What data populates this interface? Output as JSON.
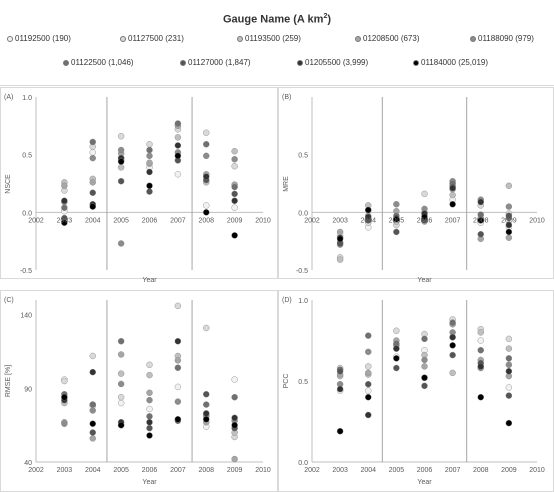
{
  "legend": {
    "title": "Gauge Name (A km",
    "title_sup": "2",
    "title_end": ")",
    "rows": [
      [
        "01192500 (190)",
        "01127500 (231)",
        "01193500 (259)",
        "01208500 (673)",
        "01188090 (979)"
      ],
      [
        "01122500 (1,046)",
        "01127000 (1,847)",
        "01205500 (3,999)",
        "01184000 (25,019)"
      ]
    ]
  },
  "colors": [
    "#f2f2f2",
    "#d9d9d9",
    "#bfbfbf",
    "#a6a6a6",
    "#8c8c8c",
    "#707070",
    "#555555",
    "#333333",
    "#000000"
  ],
  "chart_data": [
    {
      "id": "A",
      "panel_label": "(A)",
      "type": "scatter",
      "ylabel": "NSCE",
      "xlabel": "Year",
      "xlim": [
        2002,
        2010
      ],
      "ylim": [
        -0.5,
        1.0
      ],
      "xticks": [
        "2002",
        "2003",
        "2004",
        "2005",
        "2006",
        "2007",
        "2008",
        "2009",
        "2010"
      ],
      "yticks": [
        "-0.5",
        "0.0",
        "0.5",
        "1.0"
      ],
      "ytick_values": [
        -0.5,
        0,
        0.5,
        1.0
      ],
      "dividers": [
        2004.5,
        2007.5
      ],
      "x": [
        2003,
        2004,
        2005,
        2006,
        2007,
        2008,
        2009
      ],
      "values": [
        [
          0.01,
          0.52,
          0.45,
          0.39,
          0.33,
          0.06,
          0.04
        ],
        [
          0.19,
          0.57,
          0.66,
          0.59,
          0.72,
          0.69,
          0.4
        ],
        [
          0.26,
          0.29,
          0.39,
          0.42,
          0.65,
          0.26,
          0.53
        ],
        [
          0.23,
          0.26,
          0.51,
          0.43,
          0.75,
          0.33,
          0.24
        ],
        [
          0.09,
          0.47,
          0.54,
          0.49,
          0.52,
          0.49,
          0.46
        ],
        [
          0.04,
          0.61,
          0.47,
          0.54,
          0.77,
          0.59,
          0.22
        ],
        [
          -0.05,
          0.17,
          0.27,
          0.18,
          0.45,
          0.28,
          0.16
        ],
        [
          0.1,
          0.07,
          0.47,
          0.35,
          0.58,
          0.31,
          0.1
        ],
        [
          -0.09,
          0.05,
          0.44,
          0.23,
          0.49,
          0.0,
          -0.2
        ]
      ],
      "extra_points": [
        [
          2005,
          -0.27,
          4
        ]
      ]
    },
    {
      "id": "B",
      "panel_label": "(B)",
      "type": "scatter",
      "ylabel": "MRE",
      "xlabel": "Year",
      "xlim": [
        2002,
        2010
      ],
      "ylim": [
        -0.5,
        1.0
      ],
      "xticks": [
        "2002",
        "2003",
        "2004",
        "2005",
        "2006",
        "2007",
        "2008",
        "2009",
        "2010"
      ],
      "yticks": [
        "-0.5",
        "0.0",
        "0.5"
      ],
      "ytick_values": [
        -0.5,
        0,
        0.5
      ],
      "dividers": [
        2004.5,
        2007.5
      ],
      "x": [
        2003,
        2004,
        2005,
        2006,
        2007,
        2008,
        2009
      ],
      "values": [
        [
          -0.2,
          -0.13,
          -0.06,
          0.0,
          0.11,
          -0.09,
          -0.13
        ],
        [
          -0.39,
          -0.09,
          -0.11,
          0.16,
          0.23,
          0.06,
          -0.01
        ],
        [
          -0.41,
          0.06,
          -0.08,
          -0.05,
          0.15,
          -0.05,
          0.23
        ],
        [
          -0.17,
          -0.03,
          0.01,
          -0.08,
          0.2,
          -0.23,
          -0.22
        ],
        [
          -0.28,
          -0.06,
          0.07,
          0.03,
          0.27,
          0.11,
          0.05
        ],
        [
          -0.26,
          0.02,
          -0.03,
          -0.02,
          0.25,
          -0.02,
          -0.05
        ],
        [
          -0.27,
          -0.07,
          -0.17,
          -0.07,
          0.22,
          -0.19,
          -0.03
        ],
        [
          -0.22,
          -0.04,
          -0.05,
          -0.01,
          0.21,
          0.09,
          -0.11
        ],
        [
          -0.23,
          0.02,
          -0.06,
          -0.04,
          0.07,
          -0.07,
          -0.17
        ]
      ],
      "extra_points": []
    },
    {
      "id": "C",
      "panel_label": "(C)",
      "type": "scatter",
      "ylabel": "RMSE [%]",
      "xlabel": "Year",
      "xlim": [
        2002,
        2010
      ],
      "ylim": [
        40,
        150
      ],
      "xticks": [
        "2002",
        "2003",
        "2004",
        "2005",
        "2006",
        "2007",
        "2008",
        "2009",
        "2010"
      ],
      "yticks": [
        "40",
        "90",
        "140"
      ],
      "ytick_values": [
        40,
        90,
        140
      ],
      "dividers": [
        2004.5,
        2007.5
      ],
      "x": [
        2003,
        2004,
        2005,
        2006,
        2007,
        2008,
        2009
      ],
      "values": [
        [
          96,
          78,
          80,
          76,
          91,
          64,
          96
        ],
        [
          95,
          112,
          84,
          106,
          146,
          131,
          57
        ],
        [
          80,
          79,
          100,
          99,
          112,
          71,
          60
        ],
        [
          67,
          56,
          113,
          87,
          109,
          67,
          42
        ],
        [
          66,
          75,
          93,
          82,
          81,
          72,
          68
        ],
        [
          86,
          79,
          122,
          71,
          104,
          79,
          84
        ],
        [
          84,
          60,
          65,
          63,
          68,
          86,
          63
        ],
        [
          82,
          101,
          67,
          67,
          122,
          73,
          70
        ],
        [
          84,
          66,
          65,
          58,
          69,
          69,
          65
        ]
      ],
      "extra_points": []
    },
    {
      "id": "D",
      "panel_label": "(D)",
      "type": "scatter",
      "ylabel": "PCC",
      "xlabel": "Year",
      "xlim": [
        2002,
        2010
      ],
      "ylim": [
        0,
        1.0
      ],
      "xticks": [
        "2002",
        "2003",
        "2004",
        "2005",
        "2006",
        "2007",
        "2008",
        "2009",
        "2010"
      ],
      "yticks": [
        "0.0",
        "0.5",
        "1.0"
      ],
      "ytick_values": [
        0,
        0.5,
        1.0
      ],
      "dividers": [
        2004.5,
        2007.5
      ],
      "x": [
        2003,
        2004,
        2005,
        2006,
        2007,
        2008,
        2009
      ],
      "values": [
        [
          0.44,
          0.44,
          0.65,
          0.69,
          0.77,
          0.75,
          0.46
        ],
        [
          0.58,
          0.59,
          0.81,
          0.79,
          0.88,
          0.82,
          0.76
        ],
        [
          0.53,
          0.54,
          0.7,
          0.66,
          0.55,
          0.8,
          0.7
        ],
        [
          0.54,
          0.55,
          0.75,
          0.59,
          0.85,
          0.63,
          0.53
        ],
        [
          0.48,
          0.68,
          0.72,
          0.63,
          0.8,
          0.58,
          0.6
        ],
        [
          0.57,
          0.78,
          0.73,
          0.76,
          0.86,
          0.69,
          0.64
        ],
        [
          0.56,
          0.48,
          0.58,
          0.47,
          0.66,
          0.61,
          0.41
        ],
        [
          0.45,
          0.29,
          0.7,
          0.52,
          0.77,
          0.59,
          0.56
        ],
        [
          0.19,
          0.4,
          0.64,
          0.52,
          0.72,
          0.4,
          0.24
        ]
      ],
      "extra_points": []
    }
  ]
}
